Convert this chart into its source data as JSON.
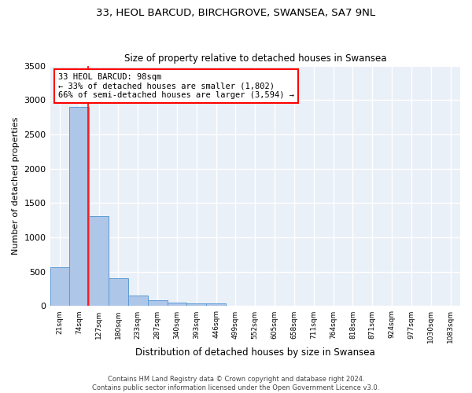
{
  "title": "33, HEOL BARCUD, BIRCHGROVE, SWANSEA, SA7 9NL",
  "subtitle": "Size of property relative to detached houses in Swansea",
  "xlabel": "Distribution of detached houses by size in Swansea",
  "ylabel": "Number of detached properties",
  "categories": [
    "21sqm",
    "74sqm",
    "127sqm",
    "180sqm",
    "233sqm",
    "287sqm",
    "340sqm",
    "393sqm",
    "446sqm",
    "499sqm",
    "552sqm",
    "605sqm",
    "658sqm",
    "711sqm",
    "764sqm",
    "818sqm",
    "871sqm",
    "924sqm",
    "977sqm",
    "1030sqm",
    "1083sqm"
  ],
  "bar_heights": [
    570,
    2900,
    1310,
    410,
    155,
    80,
    50,
    40,
    40,
    0,
    0,
    0,
    0,
    0,
    0,
    0,
    0,
    0,
    0,
    0,
    0
  ],
  "bar_color": "#aec6e8",
  "bar_edge_color": "#5b9bd5",
  "property_line_color": "red",
  "annotation_text": "33 HEOL BARCUD: 98sqm\n← 33% of detached houses are smaller (1,802)\n66% of semi-detached houses are larger (3,594) →",
  "annotation_box_color": "white",
  "annotation_box_edge_color": "red",
  "ylim": [
    0,
    3500
  ],
  "yticks": [
    0,
    500,
    1000,
    1500,
    2000,
    2500,
    3000,
    3500
  ],
  "bg_color": "#eaf0f8",
  "grid_color": "white",
  "footer_line1": "Contains HM Land Registry data © Crown copyright and database right 2024.",
  "footer_line2": "Contains public sector information licensed under the Open Government Licence v3.0."
}
